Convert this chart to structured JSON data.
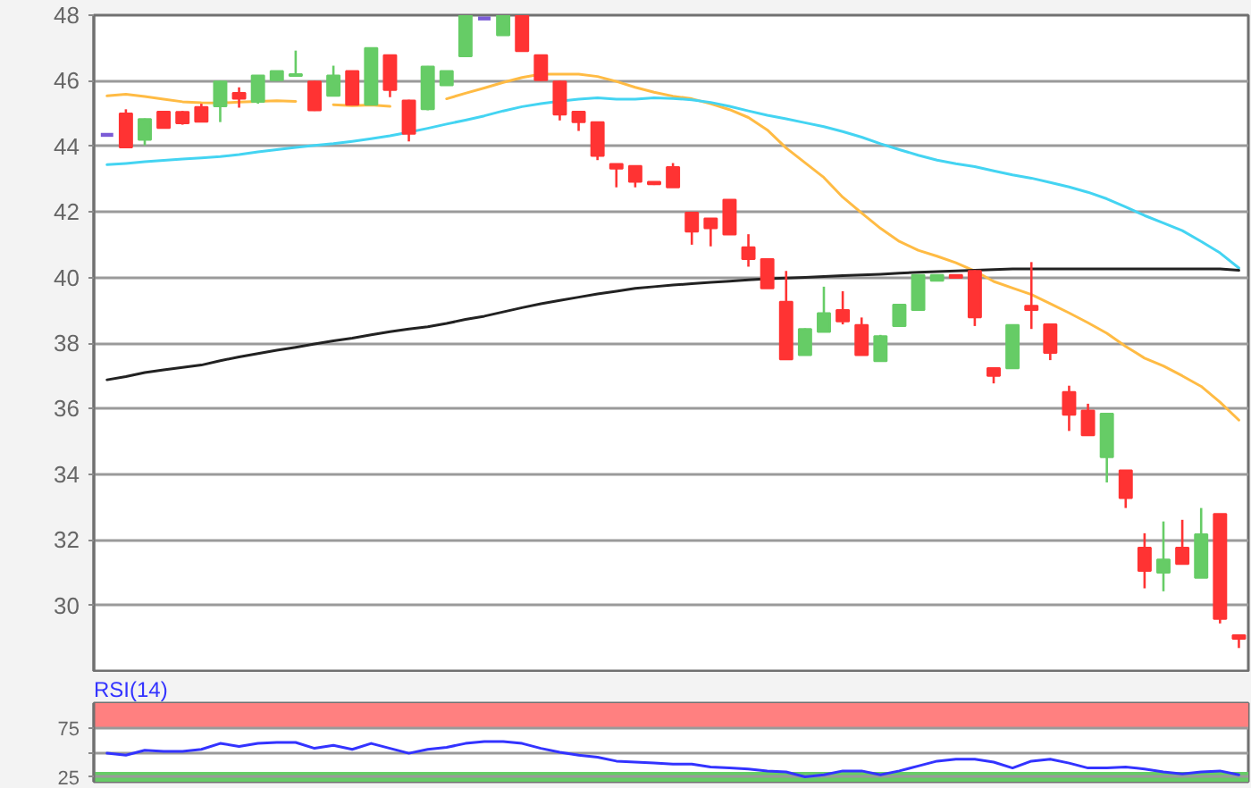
{
  "chart_data": [
    {
      "type": "candlestick",
      "categories": [
        null,
        null,
        null,
        null,
        null,
        null,
        null,
        null,
        null,
        null,
        null,
        null,
        null,
        null,
        null,
        null,
        null,
        null,
        null,
        null,
        null,
        null,
        null,
        null,
        null,
        null,
        null,
        null,
        null,
        null,
        null,
        null,
        null,
        null,
        null,
        null,
        null,
        null,
        null,
        null,
        null,
        null,
        null,
        null,
        null,
        null,
        null,
        null,
        null,
        null,
        null,
        null,
        null,
        null,
        null,
        null,
        null,
        null,
        null,
        null,
        null
      ],
      "ohlc": [
        [
          44.35,
          44.35,
          44.35,
          44.35
        ],
        [
          45.0,
          45.13,
          43.97,
          43.97
        ],
        [
          44.2,
          44.85,
          44.03,
          44.83
        ],
        [
          45.06,
          45.08,
          44.54,
          44.56
        ],
        [
          45.05,
          45.08,
          44.66,
          44.7
        ],
        [
          45.2,
          45.3,
          44.74,
          44.75
        ],
        [
          45.22,
          46.0,
          44.74,
          45.98
        ],
        [
          45.63,
          45.8,
          45.18,
          45.45
        ],
        [
          45.36,
          46.16,
          45.3,
          46.16
        ],
        [
          46.02,
          46.3,
          46.0,
          46.3
        ],
        [
          46.15,
          46.92,
          46.15,
          46.2
        ],
        [
          45.98,
          46.0,
          45.08,
          45.1
        ],
        [
          45.54,
          46.46,
          45.54,
          46.16
        ],
        [
          46.3,
          46.3,
          45.25,
          45.27
        ],
        [
          45.27,
          47.0,
          45.25,
          47.0
        ],
        [
          46.78,
          46.8,
          45.5,
          45.72
        ],
        [
          45.4,
          45.42,
          44.15,
          44.38
        ],
        [
          45.13,
          46.45,
          45.1,
          46.43
        ],
        [
          45.86,
          46.3,
          45.86,
          46.3
        ],
        [
          46.75,
          48.0,
          46.75,
          48.0
        ],
        [
          47.9,
          47.9,
          47.9,
          47.9
        ],
        [
          47.39,
          48.0,
          47.39,
          48.0
        ],
        [
          48.0,
          48.0,
          46.9,
          46.9
        ],
        [
          46.78,
          46.78,
          46.0,
          46.02
        ],
        [
          45.98,
          46.0,
          44.79,
          44.97
        ],
        [
          45.06,
          45.06,
          44.47,
          44.74
        ],
        [
          44.74,
          44.74,
          43.58,
          43.71
        ],
        [
          43.46,
          43.46,
          42.75,
          43.32
        ],
        [
          43.4,
          43.4,
          42.75,
          42.92
        ],
        [
          42.92,
          42.92,
          42.82,
          42.84
        ],
        [
          43.37,
          43.49,
          42.75,
          42.75
        ],
        [
          41.98,
          41.98,
          41.0,
          41.4
        ],
        [
          41.8,
          41.8,
          40.95,
          41.5
        ],
        [
          42.37,
          42.37,
          41.31,
          41.31
        ],
        [
          40.92,
          41.32,
          40.33,
          40.56
        ],
        [
          40.56,
          40.56,
          39.67,
          39.67
        ],
        [
          39.26,
          40.2,
          37.5,
          37.5
        ],
        [
          37.63,
          38.45,
          37.63,
          38.43
        ],
        [
          38.34,
          39.72,
          38.34,
          38.91
        ],
        [
          39.01,
          39.58,
          38.57,
          38.66
        ],
        [
          38.55,
          38.78,
          37.63,
          37.63
        ],
        [
          37.45,
          38.25,
          37.45,
          38.21
        ],
        [
          38.52,
          39.17,
          38.5,
          39.17
        ],
        [
          39.01,
          40.1,
          39.01,
          40.08
        ],
        [
          39.9,
          40.08,
          39.9,
          40.08
        ],
        [
          40.08,
          40.08,
          39.99,
          39.99
        ],
        [
          40.2,
          40.22,
          38.52,
          38.78
        ],
        [
          37.24,
          37.24,
          36.77,
          37.0
        ],
        [
          37.23,
          38.55,
          37.23,
          38.55
        ],
        [
          39.14,
          40.47,
          38.43,
          39.01
        ],
        [
          38.57,
          38.6,
          37.48,
          37.7
        ],
        [
          36.51,
          36.7,
          35.32,
          35.81
        ],
        [
          35.94,
          36.15,
          35.19,
          35.19
        ],
        [
          34.52,
          35.85,
          33.75,
          35.85
        ],
        [
          34.12,
          34.12,
          32.97,
          33.27
        ],
        [
          31.76,
          32.2,
          30.52,
          31.05
        ],
        [
          31.0,
          32.56,
          30.43,
          31.4
        ],
        [
          31.76,
          32.61,
          31.26,
          31.26
        ],
        [
          30.84,
          32.97,
          30.84,
          32.17
        ],
        [
          32.79,
          32.79,
          29.45,
          29.59
        ],
        [
          29.09,
          29.09,
          28.7,
          28.98
        ]
      ],
      "colors": [
        "#7b5cd6",
        "#ff3333",
        "#66cc66",
        "#ff3333",
        "#ff3333",
        "#ff3333",
        "#66cc66",
        "#ff3333",
        "#66cc66",
        "#66cc66",
        "#66cc66",
        "#ff3333",
        "#66cc66",
        "#ff3333",
        "#66cc66",
        "#ff3333",
        "#ff3333",
        "#66cc66",
        "#66cc66",
        "#66cc66",
        "#7b5cd6",
        "#66cc66",
        "#ff3333",
        "#ff3333",
        "#ff3333",
        "#ff3333",
        "#ff3333",
        "#ff3333",
        "#ff3333",
        "#ff3333",
        "#ff3333",
        "#ff3333",
        "#ff3333",
        "#ff3333",
        "#ff3333",
        "#ff3333",
        "#ff3333",
        "#66cc66",
        "#66cc66",
        "#ff3333",
        "#ff3333",
        "#66cc66",
        "#66cc66",
        "#66cc66",
        "#66cc66",
        "#ff3333",
        "#ff3333",
        "#ff3333",
        "#66cc66",
        "#ff3333",
        "#ff3333",
        "#ff3333",
        "#ff3333",
        "#66cc66",
        "#ff3333",
        "#ff3333",
        "#66cc66",
        "#ff3333",
        "#66cc66",
        "#ff3333",
        "#ff3333"
      ],
      "series": [
        {
          "type": "line",
          "color": "#ffbb44",
          "values": [
            45.54,
            45.59,
            45.52,
            45.44,
            45.36,
            45.33,
            45.32,
            45.35,
            45.37,
            45.39,
            45.37,
            null,
            45.27,
            45.24,
            45.26,
            45.22,
            null,
            null,
            45.45,
            45.62,
            45.78,
            45.95,
            46.1,
            46.2,
            46.2,
            46.2,
            46.13,
            45.98,
            45.8,
            45.65,
            45.53,
            45.45,
            45.3,
            45.12,
            44.88,
            44.5,
            43.95,
            43.5,
            43.05,
            42.45,
            41.97,
            41.5,
            41.1,
            40.83,
            40.65,
            40.45,
            40.2,
            39.88,
            39.68,
            39.48,
            39.2,
            38.92,
            38.62,
            38.3,
            37.9,
            37.54,
            37.3,
            37.0,
            36.68,
            36.2,
            35.65
          ]
        },
        {
          "type": "line",
          "color": "#44d4f2",
          "values": [
            43.44,
            43.48,
            43.53,
            43.57,
            43.61,
            43.65,
            43.69,
            43.75,
            43.83,
            43.9,
            43.97,
            44.03,
            44.08,
            44.15,
            44.23,
            44.32,
            44.43,
            44.55,
            44.68,
            44.8,
            44.93,
            45.08,
            45.21,
            45.3,
            45.38,
            45.44,
            45.48,
            45.44,
            45.44,
            45.48,
            45.46,
            45.42,
            45.34,
            45.22,
            45.08,
            44.95,
            44.84,
            44.72,
            44.6,
            44.45,
            44.28,
            44.08,
            43.9,
            43.73,
            43.58,
            43.47,
            43.38,
            43.25,
            43.13,
            43.03,
            42.9,
            42.76,
            42.6,
            42.4,
            42.15,
            41.89,
            41.66,
            41.43,
            41.1,
            40.75,
            40.29
          ]
        },
        {
          "type": "line",
          "color": "#222222",
          "values": [
            36.88,
            36.98,
            37.1,
            37.18,
            37.26,
            37.33,
            37.46,
            37.58,
            37.68,
            37.78,
            37.87,
            37.97,
            38.07,
            38.15,
            38.25,
            38.35,
            38.43,
            38.5,
            38.6,
            38.72,
            38.82,
            38.95,
            39.08,
            39.2,
            39.3,
            39.4,
            39.5,
            39.58,
            39.67,
            39.72,
            39.77,
            39.81,
            39.85,
            39.89,
            39.93,
            39.96,
            39.98,
            40.0,
            40.03,
            40.06,
            40.08,
            40.1,
            40.13,
            40.16,
            40.18,
            40.2,
            40.22,
            40.24,
            40.26,
            40.26,
            40.26,
            40.26,
            40.26,
            40.26,
            40.26,
            40.26,
            40.26,
            40.26,
            40.26,
            40.26,
            40.22
          ]
        }
      ],
      "ylim": [
        28,
        48
      ],
      "yticks": [
        30,
        32,
        34,
        36,
        38,
        40,
        42,
        44,
        46,
        48
      ],
      "grid": "y"
    },
    {
      "type": "line",
      "title": "RSI(14)",
      "categories": [
        null,
        null,
        null,
        null,
        null,
        null,
        null,
        null,
        null,
        null,
        null,
        null,
        null,
        null,
        null,
        null,
        null,
        null,
        null,
        null,
        null,
        null,
        null,
        null,
        null,
        null,
        null,
        null,
        null,
        null,
        null,
        null,
        null,
        null,
        null,
        null,
        null,
        null,
        null,
        null,
        null,
        null,
        null,
        null,
        null,
        null,
        null,
        null,
        null,
        null,
        null,
        null,
        null,
        null,
        null,
        null,
        null,
        null,
        null,
        null,
        null
      ],
      "series": [
        {
          "color": "#3333ff",
          "values": [
            49,
            47,
            52,
            51,
            51,
            53,
            59,
            56,
            59,
            60,
            60,
            54,
            57,
            53,
            59,
            54,
            49,
            53,
            55,
            59,
            61,
            61,
            59,
            54,
            50,
            47,
            45,
            41,
            40,
            39,
            38,
            38,
            35,
            34,
            33,
            31,
            30,
            25,
            27,
            31,
            31,
            27,
            31,
            36,
            41,
            43,
            43,
            40,
            34,
            41,
            43,
            39,
            34,
            34,
            35,
            33,
            30,
            28,
            30,
            31,
            27
          ]
        }
      ],
      "ylim": [
        20,
        100
      ],
      "yticks": [
        25,
        {
          "value": 50,
          "label": null
        },
        75
      ],
      "grid": "y",
      "bands": [
        {
          "axis": "y",
          "from": 75,
          "to": 100,
          "color": "#ff8080"
        },
        {
          "axis": "y",
          "from": 20,
          "to": 30,
          "color": "#66cc66"
        }
      ]
    }
  ]
}
